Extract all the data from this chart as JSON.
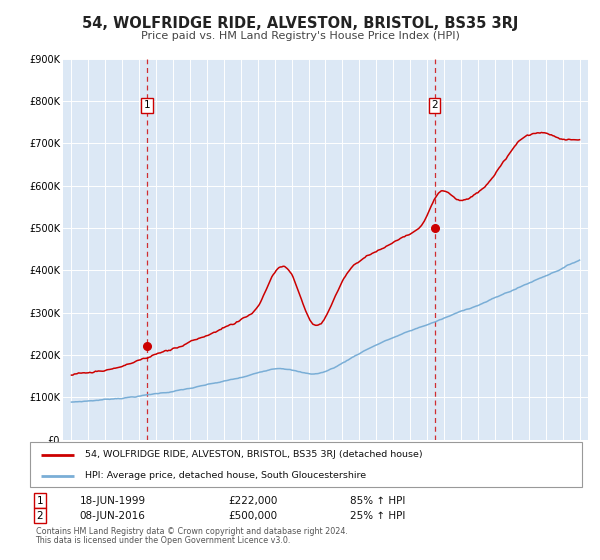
{
  "title": "54, WOLFRIDGE RIDE, ALVESTON, BRISTOL, BS35 3RJ",
  "subtitle": "Price paid vs. HM Land Registry's House Price Index (HPI)",
  "bg_color": "#dce8f5",
  "red_line_color": "#cc0000",
  "blue_line_color": "#7aaed6",
  "sale1_year": 1999.46,
  "sale1_price": 222000,
  "sale1_label": "1",
  "sale1_date": "18-JUN-1999",
  "sale1_pct": "85%",
  "sale2_year": 2016.44,
  "sale2_price": 500000,
  "sale2_label": "2",
  "sale2_date": "08-JUN-2016",
  "sale2_pct": "25%",
  "legend_label_red": "54, WOLFRIDGE RIDE, ALVESTON, BRISTOL, BS35 3RJ (detached house)",
  "legend_label_blue": "HPI: Average price, detached house, South Gloucestershire",
  "footnote1": "Contains HM Land Registry data © Crown copyright and database right 2024.",
  "footnote2": "This data is licensed under the Open Government Licence v3.0.",
  "ylim_max": 900000,
  "xlim_min": 1994.5,
  "xlim_max": 2025.5,
  "yticks": [
    0,
    100000,
    200000,
    300000,
    400000,
    500000,
    600000,
    700000,
    800000,
    900000
  ],
  "ylabels": [
    "£0",
    "£100K",
    "£200K",
    "£300K",
    "£400K",
    "£500K",
    "£600K",
    "£700K",
    "£800K",
    "£900K"
  ]
}
